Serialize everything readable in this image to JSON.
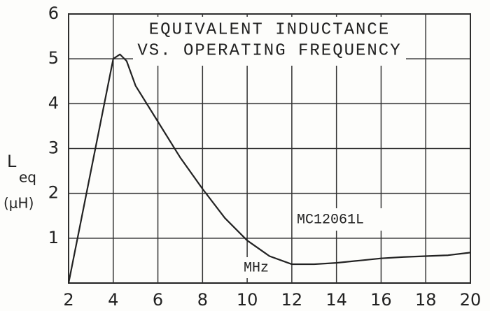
{
  "chart_data": {
    "type": "line",
    "title": [
      "EQUIVALENT INDUCTANCE",
      "VS. OPERATING FREQUENCY"
    ],
    "ylabel": {
      "text": "L",
      "subscript": "eq",
      "unit": "(µH)"
    },
    "annotations": [
      "MC12061L",
      "MHz"
    ],
    "x": [
      2,
      3,
      4,
      4.3,
      4.6,
      5,
      6,
      7,
      8,
      9,
      10,
      11,
      12,
      13,
      14,
      15,
      16,
      17,
      18,
      19,
      20
    ],
    "series": [
      {
        "color": "#222222",
        "values": [
          0,
          2.5,
          5.0,
          5.1,
          4.95,
          4.4,
          3.6,
          2.8,
          2.1,
          1.45,
          0.95,
          0.6,
          0.42,
          0.42,
          0.45,
          0.5,
          0.55,
          0.58,
          0.6,
          0.62,
          0.68
        ]
      }
    ],
    "xlim": [
      2,
      20
    ],
    "xticks": [
      2,
      4,
      6,
      8,
      10,
      12,
      14,
      16,
      18,
      20
    ],
    "ylim": [
      0,
      6
    ],
    "yticks": [
      1,
      2,
      3,
      4,
      5,
      6
    ],
    "grid": true
  }
}
